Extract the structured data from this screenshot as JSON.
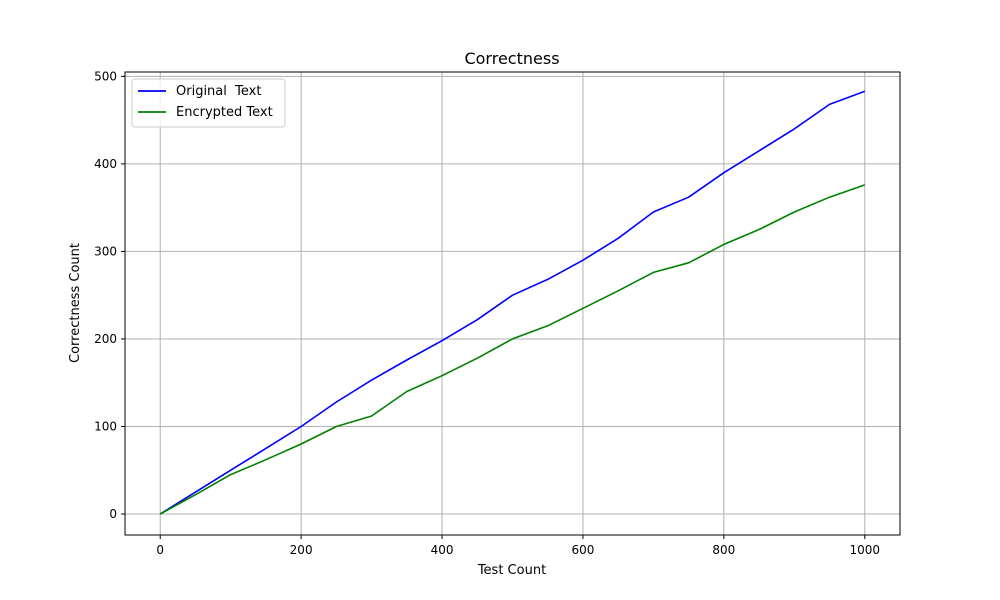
{
  "chart_data": {
    "type": "line",
    "title": "Correctness",
    "xlabel": "Test Count",
    "ylabel": "Correctness Count",
    "xlim": [
      -50,
      1050
    ],
    "ylim": [
      -24,
      505
    ],
    "x_ticks": [
      0,
      200,
      400,
      600,
      800,
      1000
    ],
    "y_ticks": [
      0,
      100,
      200,
      300,
      400,
      500
    ],
    "x_tick_labels": [
      "0",
      "200",
      "400",
      "600",
      "800",
      "1000"
    ],
    "y_tick_labels": [
      "0",
      "100",
      "200",
      "300",
      "400",
      "500"
    ],
    "grid": true,
    "legend_position": "top-left",
    "x": [
      0,
      50,
      100,
      150,
      200,
      250,
      300,
      350,
      400,
      450,
      500,
      550,
      600,
      650,
      700,
      750,
      800,
      850,
      900,
      950,
      1000
    ],
    "series": [
      {
        "name": "Original  Text",
        "color": "#0000ff",
        "values": [
          0,
          25,
          50,
          75,
          100,
          128,
          153,
          176,
          198,
          222,
          250,
          268,
          290,
          315,
          345,
          362,
          390,
          415,
          440,
          468,
          483
        ]
      },
      {
        "name": "Encrypted Text",
        "color": "#008000",
        "values": [
          0,
          22,
          45,
          62,
          80,
          100,
          112,
          140,
          158,
          178,
          200,
          215,
          235,
          255,
          276,
          287,
          308,
          325,
          345,
          362,
          376
        ]
      }
    ]
  }
}
